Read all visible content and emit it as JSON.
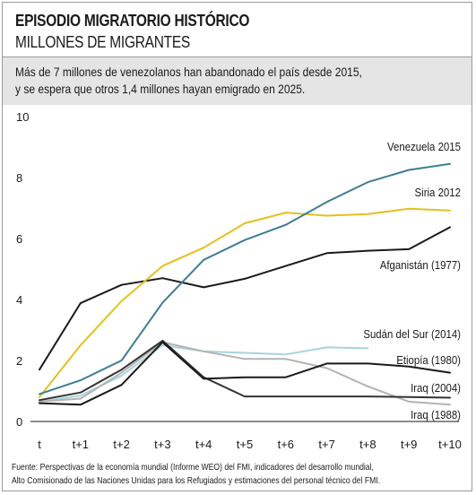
{
  "header": {
    "title": "EPISODIO MIGRATORIO HISTÓRICO",
    "subtitle": "MILLONES DE MIGRANTES"
  },
  "summary": {
    "line1": "Más de 7 millones de venezolanos han abandonado el país desde 2015,",
    "line2": "y se espera que otros 1,4 millones hayan emigrado en 2025."
  },
  "source": {
    "line1": "Fuente: Perspectivas de la economía mundial (Informe WEO) del FMI, indicadores del desarrollo mundial,",
    "line2": "Alto Comisionado de las Naciones Unidas para los Refugiados y estimaciones del personal técnico del FMI."
  },
  "chart_data": {
    "type": "line",
    "categories": [
      "t",
      "t+1",
      "t+2",
      "t+3",
      "t+4",
      "t+5",
      "t+6",
      "t+7",
      "t+8",
      "t+9",
      "t+10"
    ],
    "ylim": [
      0,
      10
    ],
    "yticks": [
      0,
      2,
      4,
      6,
      8,
      10
    ],
    "grid": false,
    "series": [
      {
        "name": "Venezuela 2015",
        "color": "#3f7d93",
        "values": [
          0.9,
          1.35,
          2.0,
          3.9,
          5.3,
          5.95,
          6.45,
          7.2,
          7.85,
          8.25,
          8.45
        ]
      },
      {
        "name": "Siria 2012",
        "color": "#e3c11f",
        "values": [
          0.8,
          2.5,
          3.95,
          5.1,
          5.7,
          6.5,
          6.85,
          6.75,
          6.8,
          6.98,
          6.92
        ]
      },
      {
        "name": "Afganistán (1977)",
        "color": "#1a1a1a",
        "values": [
          1.7,
          3.88,
          4.48,
          4.7,
          4.4,
          4.68,
          5.1,
          5.52,
          5.6,
          5.65,
          6.37
        ]
      },
      {
        "name": "Sudán del Sur (2014)",
        "color": "#a7d4dc",
        "values": [
          0.65,
          0.85,
          1.5,
          2.5,
          2.3,
          2.25,
          2.2,
          2.43,
          2.4,
          null,
          null
        ]
      },
      {
        "name": "Etiopía (1980)",
        "color": "#1a1a1a",
        "values": [
          0.6,
          0.55,
          1.2,
          2.6,
          1.4,
          1.45,
          1.45,
          1.9,
          1.9,
          1.8,
          1.6
        ]
      },
      {
        "name": "Iraq (2004)",
        "color": "#333333",
        "values": [
          0.7,
          0.95,
          1.7,
          2.65,
          1.45,
          0.82,
          0.82,
          0.82,
          0.82,
          0.8,
          0.78
        ]
      },
      {
        "name": "Iraq (1988)",
        "color": "#b3b3b3",
        "values": [
          0.65,
          0.75,
          1.6,
          2.6,
          2.3,
          2.05,
          2.05,
          1.75,
          1.15,
          0.65,
          0.55
        ]
      }
    ],
    "annotations": [
      {
        "text": "Venezuela 2015",
        "series": 0
      },
      {
        "text": "Siria 2012",
        "series": 1
      },
      {
        "text": "Afganistán (1977)",
        "series": 2
      },
      {
        "text": "Sudán del Sur (2014)",
        "series": 3
      },
      {
        "text": "Etiopía (1980)",
        "series": 4
      },
      {
        "text": "Iraq (2004)",
        "series": 5
      },
      {
        "text": "Iraq (1988)",
        "series": 6
      }
    ]
  }
}
